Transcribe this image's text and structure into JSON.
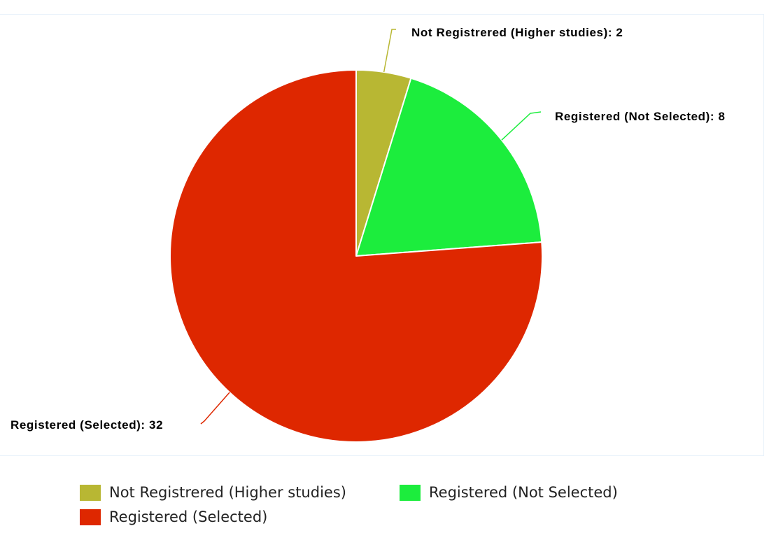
{
  "chart_data": {
    "type": "pie",
    "title": "",
    "slices": [
      {
        "name": "Not Registrered (Higher studies)",
        "value": 2,
        "color": "#b8b733",
        "data_label": "Not Registrered (Higher studies): 2"
      },
      {
        "name": "Registered (Not Selected)",
        "value": 8,
        "color": "#1ced3d",
        "data_label": "Registered (Not Selected): 8"
      },
      {
        "name": "Registered (Selected)",
        "value": 32,
        "color": "#de2700",
        "data_label": "Registered (Selected): 32"
      }
    ],
    "start_angle_deg": 0,
    "direction": "clockwise",
    "legend": {
      "position": "bottom"
    }
  }
}
